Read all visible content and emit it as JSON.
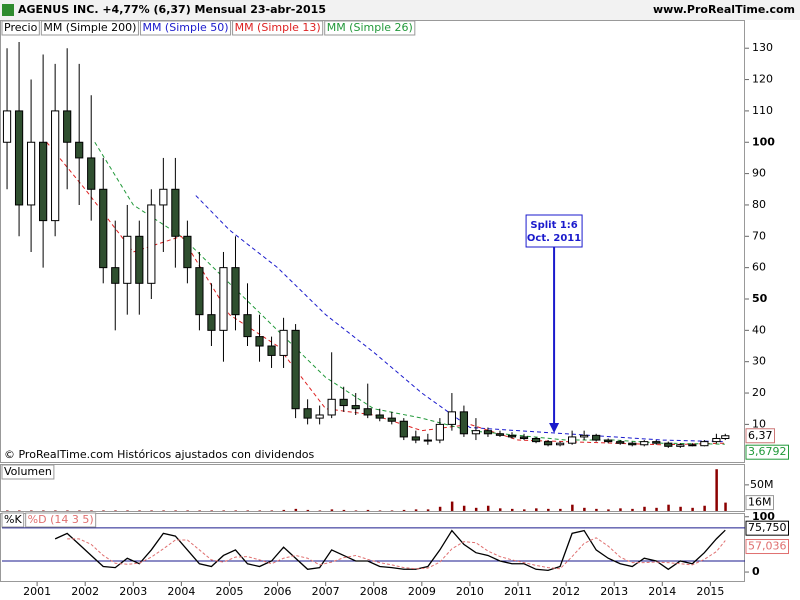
{
  "header": {
    "title": "AGENUS INC.   +4,77% (6,37)   Mensual   23-abr-2015",
    "site": "www.ProRealTime.com"
  },
  "chart_data": [
    {
      "type": "candlestick",
      "price_label": "Precio",
      "note": "© ProRealTime.com  Históricos ajustados con dividendos",
      "x": [
        2000.375,
        2000.625,
        2000.875,
        2001.125,
        2001.375,
        2001.625,
        2001.875,
        2002.125,
        2002.375,
        2002.625,
        2002.875,
        2003.125,
        2003.375,
        2003.625,
        2003.875,
        2004.125,
        2004.375,
        2004.625,
        2004.875,
        2005.125,
        2005.375,
        2005.625,
        2005.875,
        2006.125,
        2006.375,
        2006.625,
        2006.875,
        2007.125,
        2007.375,
        2007.625,
        2007.875,
        2008.125,
        2008.375,
        2008.625,
        2008.875,
        2009.125,
        2009.375,
        2009.625,
        2009.875,
        2010.125,
        2010.375,
        2010.625,
        2010.875,
        2011.125,
        2011.375,
        2011.625,
        2011.875,
        2012.125,
        2012.375,
        2012.625,
        2012.875,
        2013.125,
        2013.375,
        2013.625,
        2013.875,
        2014.125,
        2014.375,
        2014.625,
        2014.875,
        2015.125,
        2015.31
      ],
      "open": [
        100,
        110,
        80,
        100,
        75,
        110,
        100,
        95,
        85,
        60,
        55,
        70,
        55,
        80,
        85,
        70,
        60,
        45,
        40,
        60,
        45,
        38,
        35,
        32,
        40,
        15,
        12,
        13,
        18,
        16,
        15,
        13,
        12,
        11,
        6,
        5,
        5,
        10,
        14,
        7,
        8,
        7,
        6.5,
        6,
        5.5,
        4.5,
        3.5,
        4,
        6,
        6.5,
        5,
        4.5,
        4,
        3.5,
        4.5,
        4,
        3,
        3.5,
        3.2,
        4.5,
        5.5
      ],
      "high": [
        130,
        132,
        120,
        128,
        125,
        130,
        125,
        115,
        95,
        75,
        80,
        75,
        85,
        95,
        95,
        75,
        65,
        55,
        65,
        70,
        55,
        45,
        38,
        44,
        42,
        18,
        16,
        33,
        22,
        20,
        23,
        15,
        14,
        12,
        8,
        7,
        12,
        20,
        16,
        12,
        9,
        8,
        7.5,
        7,
        6,
        5,
        4.5,
        8,
        8,
        7,
        5.5,
        5,
        4.5,
        5,
        5,
        4.5,
        4,
        4,
        5,
        7,
        7
      ],
      "low": [
        85,
        70,
        65,
        60,
        70,
        85,
        80,
        75,
        55,
        40,
        45,
        45,
        50,
        65,
        60,
        55,
        40,
        35,
        30,
        40,
        35,
        30,
        28,
        28,
        12,
        10,
        10,
        12,
        14,
        13,
        12,
        11,
        10,
        5,
        4,
        3.5,
        4,
        8,
        6,
        5,
        6,
        6,
        5.5,
        5,
        4,
        3,
        3,
        3.5,
        5,
        4.5,
        4,
        3.5,
        3,
        3,
        3.5,
        2.5,
        2.5,
        3,
        3,
        4,
        5
      ],
      "close": [
        110,
        80,
        100,
        75,
        110,
        100,
        95,
        85,
        60,
        55,
        70,
        55,
        80,
        85,
        70,
        60,
        45,
        40,
        60,
        45,
        38,
        35,
        32,
        40,
        15,
        12,
        13,
        18,
        16,
        15,
        13,
        12,
        11,
        6,
        5,
        5,
        10,
        14,
        7,
        8,
        7,
        6.5,
        6,
        5.5,
        4.5,
        3.5,
        4,
        6,
        6.5,
        5,
        4.5,
        4,
        3.5,
        4.5,
        4,
        3,
        3.5,
        3.2,
        4.5,
        5.5,
        6.37
      ],
      "last_label": "6,37",
      "up_color": "#ffffff",
      "down_color": "#2f4f2f",
      "edge_color": "#000000",
      "series": [
        {
          "name": "MM (Simple 200)",
          "color": "#000000",
          "x": [],
          "values": []
        },
        {
          "name": "MM (Simple 50)",
          "color": "#1a1acc",
          "x": [
            2004.3,
            2005,
            2006,
            2007,
            2008,
            2009,
            2010,
            2011,
            2012,
            2013,
            2014,
            2015.3
          ],
          "values": [
            83,
            72,
            60,
            45,
            33,
            20,
            9,
            8,
            7,
            6,
            5,
            4.5
          ]
        },
        {
          "name": "MM (Simple 13)",
          "color": "#dd2222",
          "x": [
            2001.2,
            2002,
            2003,
            2004,
            2005,
            2006,
            2007,
            2008,
            2009,
            2010,
            2011,
            2012,
            2013,
            2014,
            2015.3
          ],
          "values": [
            100,
            85,
            65,
            70,
            45,
            35,
            15,
            13,
            8,
            10,
            5,
            4.5,
            4,
            3.5,
            4
          ]
        },
        {
          "name": "MM (Simple 26)",
          "color": "#22993a",
          "x": [
            2002.2,
            2003,
            2004,
            2005,
            2006,
            2007,
            2008,
            2009,
            2010,
            2011,
            2012,
            2013,
            2014,
            2015.3
          ],
          "values": [
            100,
            80,
            70,
            55,
            40,
            25,
            15,
            12,
            8,
            6.5,
            5,
            5,
            4,
            3.6792
          ],
          "last_label": "3,6792"
        }
      ],
      "annotation": {
        "text": [
          "Split 1:6",
          "Oct. 2011"
        ],
        "x": 2011.75
      },
      "xlim": [
        2000.27,
        2015.72
      ],
      "xticks": [
        2001,
        2002,
        2003,
        2004,
        2005,
        2006,
        2007,
        2008,
        2009,
        2010,
        2011,
        2012,
        2013,
        2014,
        2015
      ],
      "ylim": [
        -2,
        139
      ],
      "yticks": [
        10,
        20,
        30,
        40,
        50,
        60,
        70,
        80,
        90,
        100,
        110,
        120,
        130
      ]
    },
    {
      "type": "bar",
      "title": "Volumen",
      "color": "#8b0000",
      "values": [
        1,
        1,
        1,
        1,
        1,
        1,
        1,
        1,
        1,
        1,
        1,
        1,
        1,
        1,
        1,
        1,
        1,
        1,
        1,
        1,
        1,
        1,
        1,
        2,
        4,
        2,
        1,
        3,
        2,
        1,
        2,
        1,
        1,
        2,
        3,
        3,
        8,
        18,
        10,
        6,
        10,
        5,
        4,
        3,
        5,
        4,
        4,
        12,
        6,
        4,
        3,
        5,
        4,
        8,
        6,
        12,
        8,
        6,
        10,
        80,
        16
      ],
      "last_label": "16M",
      "ylim": [
        -2,
        90
      ],
      "yticks": [
        {
          "value": 50,
          "label": "50M"
        }
      ]
    },
    {
      "type": "line",
      "ylim": [
        -18,
        105
      ],
      "yticks": [
        100,
        0
      ],
      "levels": [
        80,
        20
      ],
      "series": [
        {
          "name": "%K",
          "color": "#000000",
          "last_label": "75,750",
          "values": [
            null,
            null,
            null,
            null,
            60,
            70,
            50,
            30,
            10,
            8,
            25,
            15,
            40,
            70,
            65,
            40,
            15,
            10,
            30,
            40,
            15,
            10,
            20,
            45,
            25,
            5,
            8,
            40,
            30,
            20,
            20,
            10,
            8,
            5,
            5,
            10,
            40,
            75,
            50,
            35,
            30,
            20,
            15,
            15,
            5,
            3,
            10,
            70,
            75,
            40,
            25,
            15,
            10,
            25,
            20,
            5,
            20,
            15,
            35,
            60,
            75.75
          ]
        },
        {
          "name": "%D (14 3 5)",
          "color": "#e07070",
          "last_label": "57,036",
          "values": [
            null,
            null,
            null,
            null,
            null,
            60,
            60,
            50,
            30,
            16,
            14,
            16,
            27,
            42,
            58,
            58,
            40,
            22,
            18,
            27,
            28,
            22,
            15,
            25,
            30,
            25,
            13,
            18,
            26,
            30,
            23,
            17,
            13,
            8,
            6,
            7,
            18,
            42,
            55,
            53,
            38,
            28,
            22,
            17,
            12,
            8,
            6,
            28,
            52,
            62,
            47,
            27,
            17,
            17,
            18,
            17,
            15,
            13,
            23,
            37,
            57.036
          ]
        }
      ]
    }
  ]
}
